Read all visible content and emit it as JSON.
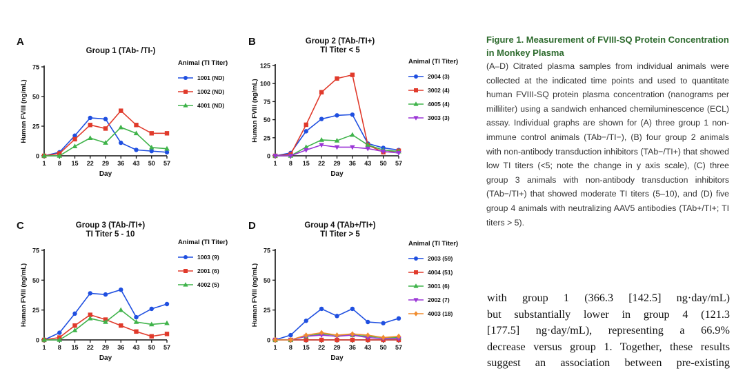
{
  "panels": [
    {
      "label": "A",
      "title_lines": [
        "Group 1 (TAb- /TI-)"
      ],
      "legend_title": "Animal (TI Titer)",
      "ylabel": "Human FVIII (ng/mL)",
      "xlabel": "Day"
    },
    {
      "label": "B",
      "title_lines": [
        "Group 2 (TAb-/TI+)",
        "TI  Titer < 5"
      ],
      "legend_title": "Animal (TI Titer)",
      "ylabel": "Human FVIII (ng/mL)",
      "xlabel": "Day"
    },
    {
      "label": "C",
      "title_lines": [
        "Group 3 (TAb-/TI+)",
        "TI Titer 5 - 10"
      ],
      "legend_title": "Animal (TI Titer)",
      "ylabel": "Human FVIII (ng/mL)",
      "xlabel": "Day"
    },
    {
      "label": "D",
      "title_lines": [
        "Group 4 (TAb+/TI+)",
        "TI Titer > 5"
      ],
      "legend_title": "Animal (TI Titer)",
      "ylabel": "Human FVIII (ng/mL)",
      "xlabel": "Day"
    }
  ],
  "chart_data": [
    {
      "type": "line",
      "title": "Group 1 (TAb- /TI-)",
      "xlabel": "Day",
      "ylabel": "Human FVIII (ng/mL)",
      "categories": [
        "1",
        "8",
        "15",
        "22",
        "29",
        "36",
        "43",
        "50",
        "57"
      ],
      "ylim": [
        0,
        75
      ],
      "yticks": [
        0,
        25,
        50,
        75
      ],
      "series": [
        {
          "name": "1001 (ND)",
          "color": "#1f4fe0",
          "marker": "circle",
          "values": [
            0,
            3,
            17,
            32,
            31,
            11,
            5,
            4,
            3
          ]
        },
        {
          "name": "1002 (ND)",
          "color": "#e03a2b",
          "marker": "square",
          "values": [
            0,
            2,
            14,
            26,
            23,
            38,
            26,
            19,
            19
          ]
        },
        {
          "name": "4001 (ND)",
          "color": "#3fb34a",
          "marker": "triangle",
          "values": [
            0,
            0,
            8,
            15,
            11,
            24,
            19,
            7,
            6
          ]
        }
      ]
    },
    {
      "type": "line",
      "title": "Group 2 (TAb-/TI+) TI Titer < 5",
      "xlabel": "Day",
      "ylabel": "Human FVIII (ng/mL)",
      "categories": [
        "1",
        "8",
        "15",
        "22",
        "29",
        "36",
        "43",
        "50",
        "57"
      ],
      "ylim": [
        0,
        125
      ],
      "yticks": [
        0,
        25,
        50,
        75,
        100,
        125
      ],
      "series": [
        {
          "name": "2004 (3)",
          "color": "#1f4fe0",
          "marker": "circle",
          "values": [
            0,
            4,
            34,
            51,
            56,
            57,
            17,
            11,
            8
          ]
        },
        {
          "name": "3002 (4)",
          "color": "#e03a2b",
          "marker": "square",
          "values": [
            0,
            2,
            43,
            88,
            107,
            112,
            15,
            5,
            7
          ]
        },
        {
          "name": "4005 (4)",
          "color": "#3fb34a",
          "marker": "triangle",
          "values": [
            0,
            0,
            12,
            22,
            21,
            29,
            15,
            8,
            6
          ]
        },
        {
          "name": "3003 (3)",
          "color": "#9b36d6",
          "marker": "triangle-down",
          "values": [
            0,
            0,
            8,
            15,
            12,
            12,
            10,
            6,
            4
          ]
        }
      ]
    },
    {
      "type": "line",
      "title": "Group 3 (TAb-/TI+) TI Titer 5 - 10",
      "xlabel": "Day",
      "ylabel": "Human FVIII (ng/mL)",
      "categories": [
        "1",
        "8",
        "15",
        "22",
        "29",
        "36",
        "43",
        "50",
        "57"
      ],
      "ylim": [
        0,
        75
      ],
      "yticks": [
        0,
        25,
        50,
        75
      ],
      "series": [
        {
          "name": "1003 (9)",
          "color": "#1f4fe0",
          "marker": "circle",
          "values": [
            0,
            6,
            22,
            39,
            38,
            42,
            19,
            26,
            30
          ]
        },
        {
          "name": "2001 (6)",
          "color": "#e03a2b",
          "marker": "square",
          "values": [
            0,
            2,
            12,
            21,
            17,
            12,
            7,
            3,
            5
          ]
        },
        {
          "name": "4002 (5)",
          "color": "#3fb34a",
          "marker": "triangle",
          "values": [
            0,
            0,
            8,
            18,
            15,
            25,
            15,
            13,
            14
          ]
        }
      ]
    },
    {
      "type": "line",
      "title": "Group 4 (TAb+/TI+) TI Titer > 5",
      "xlabel": "Day",
      "ylabel": "Human FVIII (ng/mL)",
      "categories": [
        "1",
        "8",
        "15",
        "22",
        "29",
        "36",
        "43",
        "50",
        "57"
      ],
      "ylim": [
        0,
        75
      ],
      "yticks": [
        0,
        25,
        50,
        75
      ],
      "series": [
        {
          "name": "2003 (59)",
          "color": "#1f4fe0",
          "marker": "circle",
          "values": [
            0,
            4,
            16,
            26,
            20,
            26,
            15,
            14,
            18
          ]
        },
        {
          "name": "4004 (51)",
          "color": "#e03a2b",
          "marker": "square",
          "values": [
            0,
            0,
            0,
            0,
            0,
            0,
            0,
            0,
            0
          ]
        },
        {
          "name": "3001 (6)",
          "color": "#3fb34a",
          "marker": "triangle",
          "values": [
            0,
            0,
            3,
            5,
            4,
            4,
            3,
            2,
            2
          ]
        },
        {
          "name": "2002 (7)",
          "color": "#9b36d6",
          "marker": "triangle-down",
          "values": [
            0,
            0,
            3,
            4,
            3,
            4,
            2,
            1,
            1
          ]
        },
        {
          "name": "4003 (18)",
          "color": "#f08c2e",
          "marker": "diamond",
          "values": [
            0,
            0,
            4,
            6,
            4,
            5,
            4,
            2,
            3
          ]
        }
      ]
    }
  ],
  "caption": {
    "title": "Figure 1. Measurement of FVIII-SQ Protein Concentration in Monkey Plasma",
    "text": "(A–D) Citrated plasma samples from individual animals were collected at the indicated time points and used to quantitate human FVIII-SQ protein plasma concentration (nanograms per milliliter) using a sandwich enhanced chemiluminescence (ECL) assay. Individual graphs are shown for (A) three group 1 non-immune control animals (TAb−/TI−), (B) four group 2 animals with non-antibody transduction inhibitors (TAb−/TI+) that showed low TI titers (<5; note the change in y axis scale), (C) three group 3 animals with non-antibody transduction inhibitors (TAb−/TI+) that showed moderate TI titers (5–10), and (D) five group 4 animals with neutralizing AAV5 antibodies (TAb+/TI+; TI titers > 5)."
  },
  "body_text": [
    "with group 1 (366.3 [142.5] ng·day/mL)",
    "but substantially lower in group 4 (121.3",
    "[177.5] ng·day/mL), representing a 66.9%",
    "decrease versus group 1. Together, these results",
    "suggest an association between pre-existing"
  ]
}
